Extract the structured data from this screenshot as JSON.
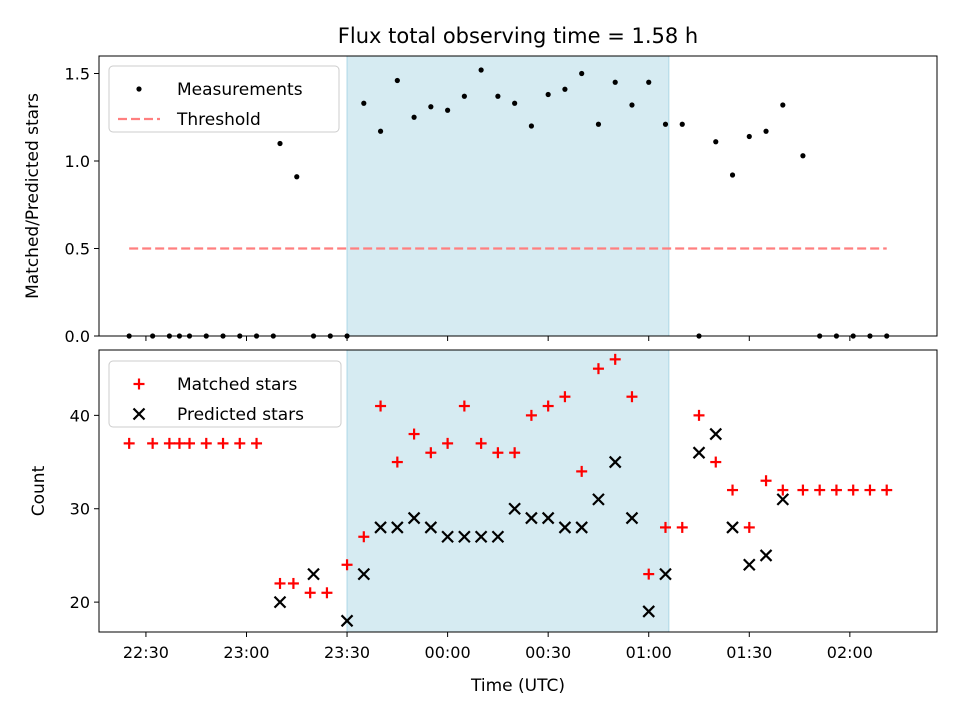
{
  "chart_data": {
    "title": "Flux total observing time = 1.58 h",
    "xlabel": "Time (UTC)",
    "xlim_minutes": [
      1336,
      1586
    ],
    "x_ticks": [
      {
        "m": 1350,
        "label": "22:30"
      },
      {
        "m": 1380,
        "label": "23:00"
      },
      {
        "m": 1410,
        "label": "23:30"
      },
      {
        "m": 1440,
        "label": "00:00"
      },
      {
        "m": 1470,
        "label": "00:30"
      },
      {
        "m": 1500,
        "label": "01:00"
      },
      {
        "m": 1530,
        "label": "01:30"
      },
      {
        "m": 1560,
        "label": "02:00"
      }
    ],
    "shaded_span_minutes": [
      1410,
      1506
    ],
    "shade_color": "#add8e6",
    "panels": [
      {
        "id": "ratio",
        "type": "scatter",
        "ylabel": "Matched/Predicted stars",
        "ylim": [
          0,
          1.6
        ],
        "y_ticks": [
          {
            "v": 0,
            "label": "0.0"
          },
          {
            "v": 0.5,
            "label": "0.5"
          },
          {
            "v": 1.0,
            "label": "1.0"
          },
          {
            "v": 1.5,
            "label": "1.5"
          }
        ],
        "legend": [
          {
            "name": "Measurements",
            "marker": "dot",
            "color": "#000000"
          },
          {
            "name": "Threshold",
            "marker": "dashed-line",
            "color": "#ff7f7f"
          }
        ],
        "threshold": {
          "y": 0.5,
          "x_start": 1345,
          "x_end": 1571
        },
        "measurements": {
          "x": [
            1345,
            1352,
            1357,
            1360,
            1363,
            1368,
            1373,
            1378,
            1383,
            1388,
            1390,
            1400,
            1410,
            1415,
            1420,
            1425,
            1430,
            1435,
            1440,
            1445,
            1450,
            1455,
            1460,
            1465,
            1470,
            1475,
            1480,
            1485,
            1490,
            1495,
            1500,
            1505,
            1510,
            1515,
            1520,
            1525,
            1530,
            1535,
            1540,
            1546,
            1551,
            1556,
            1561,
            1566,
            1571
          ],
          "y": [
            0,
            0,
            0,
            0,
            0,
            0,
            0,
            0,
            0,
            0,
            1.1,
            0,
            0,
            1.33,
            1.17,
            1.46,
            1.25,
            1.31,
            1.29,
            1.37,
            1.52,
            1.37,
            1.33,
            1.2,
            1.38,
            1.41,
            1.5,
            1.21,
            1.45,
            1.32,
            1.45,
            1.21,
            1.21,
            0,
            1.11,
            0.92,
            1.14,
            1.17,
            1.32,
            1.03,
            0,
            0,
            0,
            0,
            0
          ]
        },
        "extra_measurements": {
          "x": [
            1395,
            1405
          ],
          "y": [
            0.91,
            0
          ]
        }
      },
      {
        "id": "count",
        "type": "scatter",
        "ylabel": "Count",
        "ylim": [
          16.8,
          47
        ],
        "y_ticks": [
          {
            "v": 20,
            "label": "20"
          },
          {
            "v": 30,
            "label": "30"
          },
          {
            "v": 40,
            "label": "40"
          }
        ],
        "legend": [
          {
            "name": "Matched stars",
            "marker": "plus",
            "color": "#ff0000"
          },
          {
            "name": "Predicted stars",
            "marker": "x",
            "color": "#000000"
          }
        ],
        "matched": {
          "x": [
            1345,
            1352,
            1357,
            1360,
            1363,
            1368,
            1373,
            1378,
            1383,
            1390,
            1394,
            1399,
            1404,
            1410,
            1415,
            1420,
            1425,
            1430,
            1435,
            1440,
            1445,
            1450,
            1455,
            1460,
            1465,
            1470,
            1475,
            1480,
            1485,
            1490,
            1495,
            1500,
            1505,
            1510,
            1515,
            1520,
            1525,
            1530,
            1535,
            1540,
            1546,
            1551,
            1556,
            1561,
            1566,
            1571
          ],
          "y": [
            37,
            37,
            37,
            37,
            37,
            37,
            37,
            37,
            37,
            22,
            22,
            21,
            21,
            24,
            27,
            41,
            35,
            38,
            36,
            37,
            41,
            37,
            36,
            36,
            40,
            41,
            42,
            34,
            45,
            46,
            42,
            23,
            28,
            28,
            40,
            35,
            32,
            28,
            33,
            32,
            32,
            32,
            32,
            32,
            32,
            32
          ]
        },
        "predicted": {
          "x": [
            1390,
            1400,
            1410,
            1415,
            1420,
            1425,
            1430,
            1435,
            1440,
            1445,
            1450,
            1455,
            1460,
            1465,
            1470,
            1475,
            1480,
            1485,
            1490,
            1495,
            1500,
            1505,
            1515,
            1520,
            1525,
            1530,
            1535,
            1540
          ],
          "y": [
            20,
            23,
            18,
            23,
            28,
            28,
            29,
            28,
            27,
            27,
            27,
            27,
            30,
            29,
            29,
            28,
            28,
            31,
            35,
            29,
            19,
            23,
            36,
            38,
            28,
            24,
            25,
            31
          ]
        }
      }
    ]
  }
}
